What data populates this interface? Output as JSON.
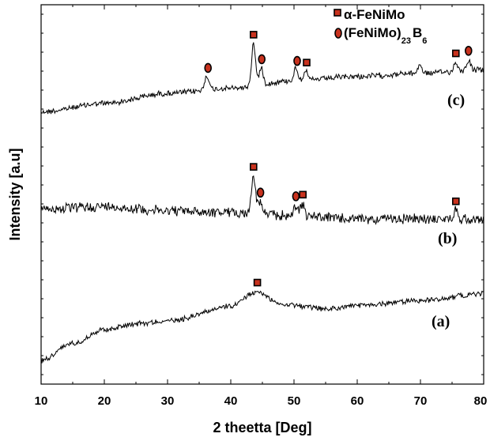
{
  "chart_data": {
    "type": "line",
    "xlabel": "2 theetta [Deg]",
    "ylabel": "Intensity [a.u]",
    "xlim": [
      10,
      80
    ],
    "x_ticks": [
      "10",
      "20",
      "30",
      "40",
      "50",
      "60",
      "70",
      "80"
    ],
    "grid": false,
    "legend_position": "top-right",
    "legend": [
      {
        "symbol": "square",
        "label": "α-FeNiMo"
      },
      {
        "symbol": "circle",
        "label_main": "(FeNiMo)",
        "label_sub1": "23",
        "label_mid": "B",
        "label_sub2": "6"
      }
    ],
    "series": [
      {
        "name": "(c)",
        "baseline": [
          [
            10,
            0.1
          ],
          [
            20,
            0.2
          ],
          [
            30,
            0.32
          ],
          [
            40,
            0.38
          ],
          [
            50,
            0.47
          ],
          [
            60,
            0.52
          ],
          [
            70,
            0.56
          ],
          [
            80,
            0.6
          ]
        ],
        "peaks": [
          [
            43.6,
            0.5
          ],
          [
            36.2,
            0.18
          ],
          [
            44.8,
            0.2
          ],
          [
            50.3,
            0.15
          ],
          [
            51.8,
            0.12
          ],
          [
            69.9,
            0.1
          ],
          [
            75.6,
            0.1
          ],
          [
            77.6,
            0.12
          ]
        ],
        "markers": [
          {
            "x": 36.4,
            "shape": "circle"
          },
          {
            "x": 43.6,
            "shape": "square"
          },
          {
            "x": 44.9,
            "shape": "circle"
          },
          {
            "x": 50.5,
            "shape": "circle"
          },
          {
            "x": 52.0,
            "shape": "square"
          },
          {
            "x": 75.6,
            "shape": "square"
          },
          {
            "x": 77.6,
            "shape": "circle"
          }
        ]
      },
      {
        "name": "(b)",
        "baseline": [
          [
            10,
            0.34
          ],
          [
            20,
            0.37
          ],
          [
            30,
            0.32
          ],
          [
            40,
            0.3
          ],
          [
            50,
            0.26
          ],
          [
            60,
            0.22
          ],
          [
            70,
            0.22
          ],
          [
            80,
            0.22
          ]
        ],
        "peaks": [
          [
            43.6,
            0.45
          ],
          [
            44.6,
            0.15
          ],
          [
            50.3,
            0.12
          ],
          [
            51.3,
            0.15
          ],
          [
            75.6,
            0.1
          ]
        ],
        "markers": [
          {
            "x": 43.6,
            "shape": "square"
          },
          {
            "x": 44.7,
            "shape": "circle"
          },
          {
            "x": 50.3,
            "shape": "circle"
          },
          {
            "x": 51.4,
            "shape": "square"
          },
          {
            "x": 75.6,
            "shape": "square"
          }
        ]
      },
      {
        "name": "(a)",
        "baseline": [
          [
            10,
            0.02
          ],
          [
            15,
            0.22
          ],
          [
            20,
            0.38
          ],
          [
            25,
            0.45
          ],
          [
            30,
            0.48
          ],
          [
            40,
            0.65
          ],
          [
            44,
            0.82
          ],
          [
            48,
            0.68
          ],
          [
            55,
            0.62
          ],
          [
            60,
            0.66
          ],
          [
            70,
            0.72
          ],
          [
            80,
            0.8
          ]
        ],
        "peaks": [],
        "markers": [
          {
            "x": 44.2,
            "shape": "square"
          }
        ]
      }
    ]
  }
}
